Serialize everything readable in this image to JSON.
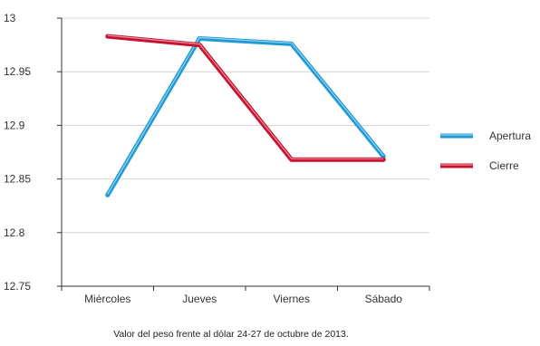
{
  "chart_data": {
    "type": "line",
    "categories": [
      "Miércoles",
      "Jueves",
      "Viernes",
      "Sábado"
    ],
    "series": [
      {
        "name": "Apertura",
        "values": [
          12.835,
          12.981,
          12.976,
          12.871
        ],
        "color": "#1e9ad6"
      },
      {
        "name": "Cierre",
        "values": [
          12.983,
          12.975,
          12.868,
          12.868
        ],
        "color": "#c8102e"
      }
    ],
    "ylim": [
      12.75,
      13
    ],
    "yticks": [
      "13",
      "12.95",
      "12.9",
      "12.85",
      "12.8",
      "12.75"
    ],
    "grid": true,
    "legend": "right",
    "caption": "Valor del peso frente al dólar 24-27 de octubre de 2013."
  }
}
